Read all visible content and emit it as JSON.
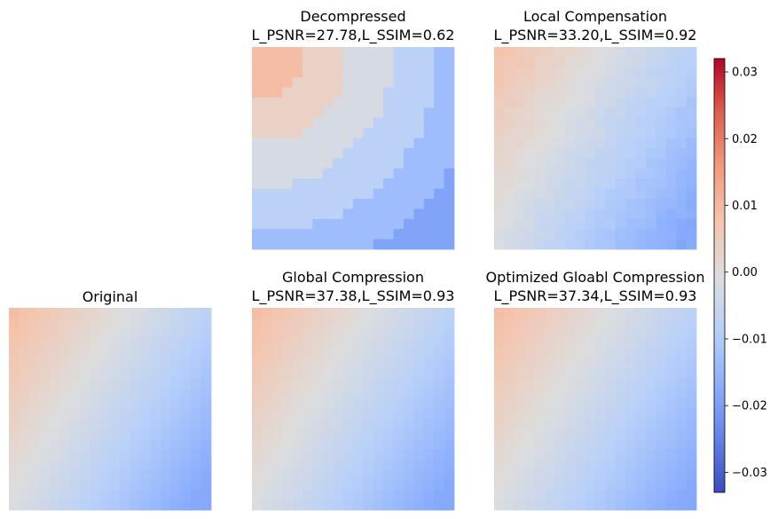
{
  "chart_data": {
    "type": "heatmap",
    "grid_size": [
      20,
      20
    ],
    "colormap": "coolwarm",
    "vmin": -0.033,
    "vmax": 0.032,
    "colorbar": {
      "ticks": [
        0.03,
        0.02,
        0.01,
        0.0,
        -0.01,
        -0.02,
        -0.03
      ],
      "tick_labels": [
        "0.03",
        "0.02",
        "0.01",
        "0.00",
        "−0.01",
        "−0.02",
        "−0.03"
      ]
    },
    "panels": [
      {
        "id": "decompressed",
        "title": "Decompressed",
        "subtitle": "L_PSNR=27.78,L_SSIM=0.62",
        "value_range": [
          -0.019,
          0.009
        ],
        "pattern": "banded"
      },
      {
        "id": "local",
        "title": "Local Compensation",
        "subtitle": "L_PSNR=33.20,L_SSIM=0.92",
        "value_range": [
          -0.018,
          0.008
        ],
        "pattern": "noisy"
      },
      {
        "id": "original",
        "title": "Original",
        "subtitle": "",
        "value_range": [
          -0.018,
          0.009
        ],
        "pattern": "smooth"
      },
      {
        "id": "global",
        "title": "Global Compression",
        "subtitle": "L_PSNR=37.38,L_SSIM=0.93",
        "value_range": [
          -0.018,
          0.009
        ],
        "pattern": "smooth"
      },
      {
        "id": "optimized",
        "title": "Optimized Gloabl Compression",
        "subtitle": "L_PSNR=37.34,L_SSIM=0.93",
        "value_range": [
          -0.018,
          0.009
        ],
        "pattern": "smooth"
      }
    ]
  }
}
